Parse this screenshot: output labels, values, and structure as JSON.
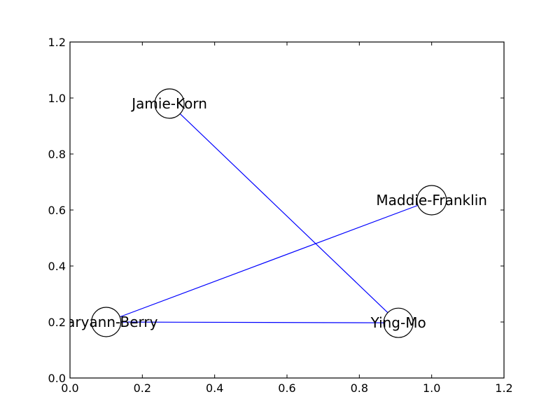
{
  "colors": {
    "edge": "#0000ff",
    "node_fill": "#ffffff",
    "node_stroke": "#000000",
    "frame": "#000000",
    "background": "#ffffff"
  },
  "chart_data": {
    "type": "scatter",
    "title": "",
    "xlabel": "",
    "ylabel": "",
    "xlim": [
      0.0,
      1.2
    ],
    "ylim": [
      0.0,
      1.2
    ],
    "grid": false,
    "x_ticks": [
      "0.0",
      "0.2",
      "0.4",
      "0.6",
      "0.8",
      "1.0",
      "1.2"
    ],
    "y_ticks": [
      "0.0",
      "0.2",
      "0.4",
      "0.6",
      "0.8",
      "1.0",
      "1.2"
    ],
    "nodes": [
      {
        "id": "jamie",
        "label": "Jamie-Korn",
        "x": 0.275,
        "y": 0.98
      },
      {
        "id": "maddie",
        "label": "Maddie-Franklin",
        "x": 1.0,
        "y": 0.635
      },
      {
        "id": "maryann",
        "label": "Maryann-Berry",
        "x": 0.1,
        "y": 0.2
      },
      {
        "id": "ying",
        "label": "Ying-Mo",
        "x": 0.908,
        "y": 0.197
      }
    ],
    "edges": [
      {
        "source": "jamie",
        "target": "ying"
      },
      {
        "source": "maryann",
        "target": "maddie"
      },
      {
        "source": "maryann",
        "target": "ying"
      }
    ]
  }
}
